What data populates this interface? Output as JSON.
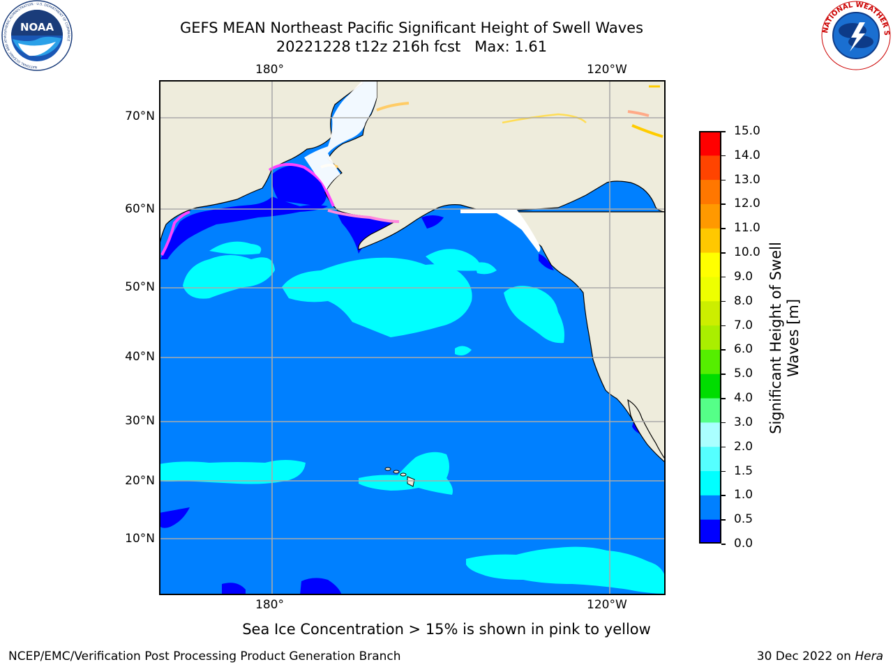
{
  "header": {
    "title_line1": "GEFS MEAN Northeast Pacific Significant Height of Swell Waves",
    "title_line2": "20221228 t12z 216h fcst   Max: 1.61"
  },
  "logos": {
    "left": "NOAA",
    "left_ring_text": "NATIONAL OCEANIC AND ATMOSPHERIC ADMINISTRATION · U.S. DEPARTMENT OF COMMERCE",
    "right_ring_text": "NATIONAL WEATHER SERVICE"
  },
  "map": {
    "lon_ticks_top": [
      "180°",
      "120°W"
    ],
    "lon_ticks_bottom": [
      "180°",
      "120°W"
    ],
    "lat_ticks": [
      "70°N",
      "60°N",
      "50°N",
      "40°N",
      "30°N",
      "20°N",
      "10°N"
    ],
    "colors": {
      "land": "#eeecdc",
      "ocean_0_5": "#0000ff",
      "ocean_0_5_1_0": "#0080ff",
      "ocean_1_0_1_5": "#00ffff",
      "grid": "#aaaaaa",
      "sea_ice_low": "#ff44ff",
      "sea_ice_high": "#ffcc00"
    }
  },
  "colorbar": {
    "title_line1": "Significant Height of Swell",
    "title_line2": "Waves [m]",
    "levels": [
      "0.0",
      "0.5",
      "1.0",
      "1.5",
      "2.0",
      "3.0",
      "4.0",
      "5.0",
      "6.0",
      "7.0",
      "8.0",
      "9.0",
      "10.0",
      "11.0",
      "12.0",
      "13.0",
      "14.0",
      "15.0"
    ],
    "colors": [
      "#0000ff",
      "#0080ff",
      "#00ffff",
      "#55ffff",
      "#aaffff",
      "#55ff88",
      "#00dd00",
      "#55ee00",
      "#aaee00",
      "#ccee00",
      "#eeff00",
      "#ffff00",
      "#ffc800",
      "#ff9900",
      "#ff7700",
      "#ff4400",
      "#ff0000"
    ]
  },
  "notes": {
    "sea_ice": "Sea Ice Concentration > 15% is shown in pink to yellow",
    "footer_left": "NCEP/EMC/Verification Post Processing Product Generation Branch",
    "footer_date": "30 Dec 2022 on ",
    "footer_machine": "Hera"
  }
}
